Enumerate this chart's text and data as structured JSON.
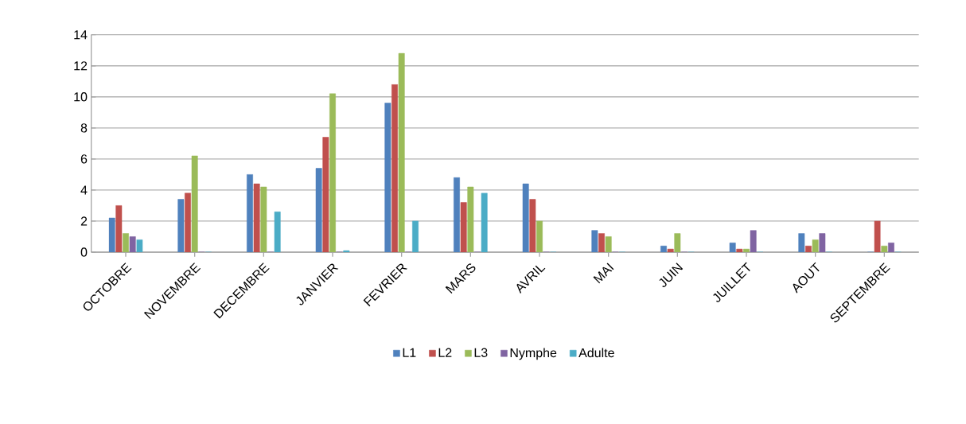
{
  "chart_data": {
    "type": "bar",
    "categories": [
      "OCTOBRE",
      "NOVEMBRE",
      "DECEMBRE",
      "JANVIER",
      "FEVRIER",
      "MARS",
      "AVRIL",
      "MAI",
      "JUIN",
      "JUILLET",
      "AOUT",
      "SEPTEMBRE"
    ],
    "series": [
      {
        "name": "L1",
        "color": "#4f81bd",
        "values": [
          2.2,
          3.4,
          5.0,
          5.4,
          9.6,
          4.8,
          4.4,
          1.4,
          0.4,
          0.6,
          1.2,
          0
        ]
      },
      {
        "name": "L2",
        "color": "#c0504d",
        "values": [
          3.0,
          3.8,
          4.4,
          7.4,
          10.8,
          3.2,
          3.4,
          1.2,
          0.2,
          0.2,
          0.4,
          2.0
        ]
      },
      {
        "name": "L3",
        "color": "#9bbb59",
        "values": [
          1.2,
          6.2,
          4.2,
          10.2,
          12.8,
          4.2,
          2.0,
          1.0,
          1.2,
          0.2,
          0.8,
          0.4
        ]
      },
      {
        "name": "Nymphe",
        "color": "#8064a2",
        "values": [
          1.0,
          0,
          0,
          0,
          0,
          0,
          0,
          0,
          0,
          1.4,
          1.2,
          0.6
        ]
      },
      {
        "name": "Adulte",
        "color": "#4bacc6",
        "values": [
          0.8,
          0,
          2.6,
          0.1,
          2.0,
          3.8,
          0,
          0,
          0,
          0,
          0,
          0
        ]
      }
    ],
    "ylim": [
      0,
      14
    ],
    "yticks": [
      0,
      2,
      4,
      6,
      8,
      10,
      12,
      14
    ],
    "grid": "y",
    "legend": "bottom"
  }
}
